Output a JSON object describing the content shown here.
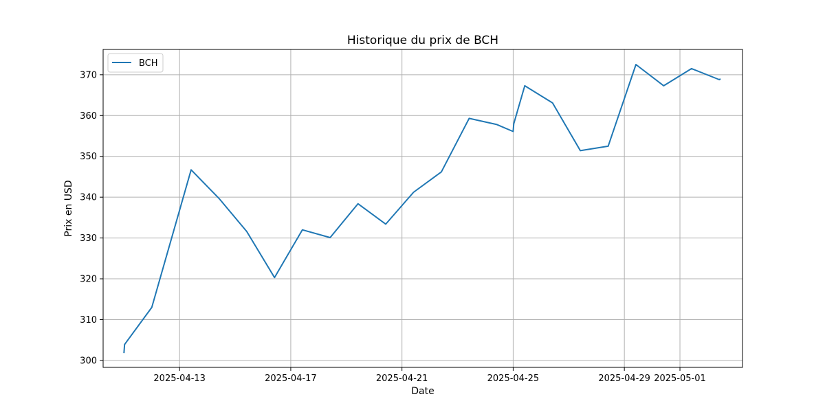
{
  "chart_data": {
    "type": "line",
    "title": "Historique du prix de BCH",
    "xlabel": "Date",
    "ylabel": "Prix en USD",
    "x_ticks": [
      "2025-04-13",
      "2025-04-17",
      "2025-04-21",
      "2025-04-25",
      "2025-04-29",
      "2025-05-01"
    ],
    "y_ticks": [
      300,
      310,
      320,
      330,
      340,
      350,
      360,
      370
    ],
    "xlim": [
      "2025-04-10T06:00",
      "2025-05-03T06:00"
    ],
    "ylim": [
      298.3,
      376.2
    ],
    "grid": true,
    "legend": "top-left",
    "series": [
      {
        "name": "BCH",
        "color": "#1f77b4",
        "points": [
          {
            "x": "2025-04-11T00:00",
            "y": 301.8
          },
          {
            "x": "2025-04-11T00:30",
            "y": 303.9
          },
          {
            "x": "2025-04-12T00:00",
            "y": 313.0
          },
          {
            "x": "2025-04-13T10:00",
            "y": 346.7
          },
          {
            "x": "2025-04-14T10:00",
            "y": 339.7
          },
          {
            "x": "2025-04-15T10:00",
            "y": 331.6
          },
          {
            "x": "2025-04-16T10:00",
            "y": 320.3
          },
          {
            "x": "2025-04-17T10:00",
            "y": 332.0
          },
          {
            "x": "2025-04-18T10:00",
            "y": 330.1
          },
          {
            "x": "2025-04-19T10:00",
            "y": 338.4
          },
          {
            "x": "2025-04-20T10:00",
            "y": 333.4
          },
          {
            "x": "2025-04-21T10:00",
            "y": 341.2
          },
          {
            "x": "2025-04-22T10:00",
            "y": 346.2
          },
          {
            "x": "2025-04-23T10:00",
            "y": 359.3
          },
          {
            "x": "2025-04-24T10:00",
            "y": 357.8
          },
          {
            "x": "2025-04-25T00:00",
            "y": 356.1
          },
          {
            "x": "2025-04-25T00:30",
            "y": 358.0
          },
          {
            "x": "2025-04-25T10:00",
            "y": 367.3
          },
          {
            "x": "2025-04-26T10:00",
            "y": 363.1
          },
          {
            "x": "2025-04-27T10:00",
            "y": 351.4
          },
          {
            "x": "2025-04-28T10:00",
            "y": 352.5
          },
          {
            "x": "2025-04-29T10:00",
            "y": 372.5
          },
          {
            "x": "2025-04-30T10:00",
            "y": 367.3
          },
          {
            "x": "2025-05-01T10:00",
            "y": 371.5
          },
          {
            "x": "2025-05-02T10:00",
            "y": 368.8
          },
          {
            "x": "2025-05-02T11:00",
            "y": 369.0
          }
        ]
      }
    ]
  }
}
